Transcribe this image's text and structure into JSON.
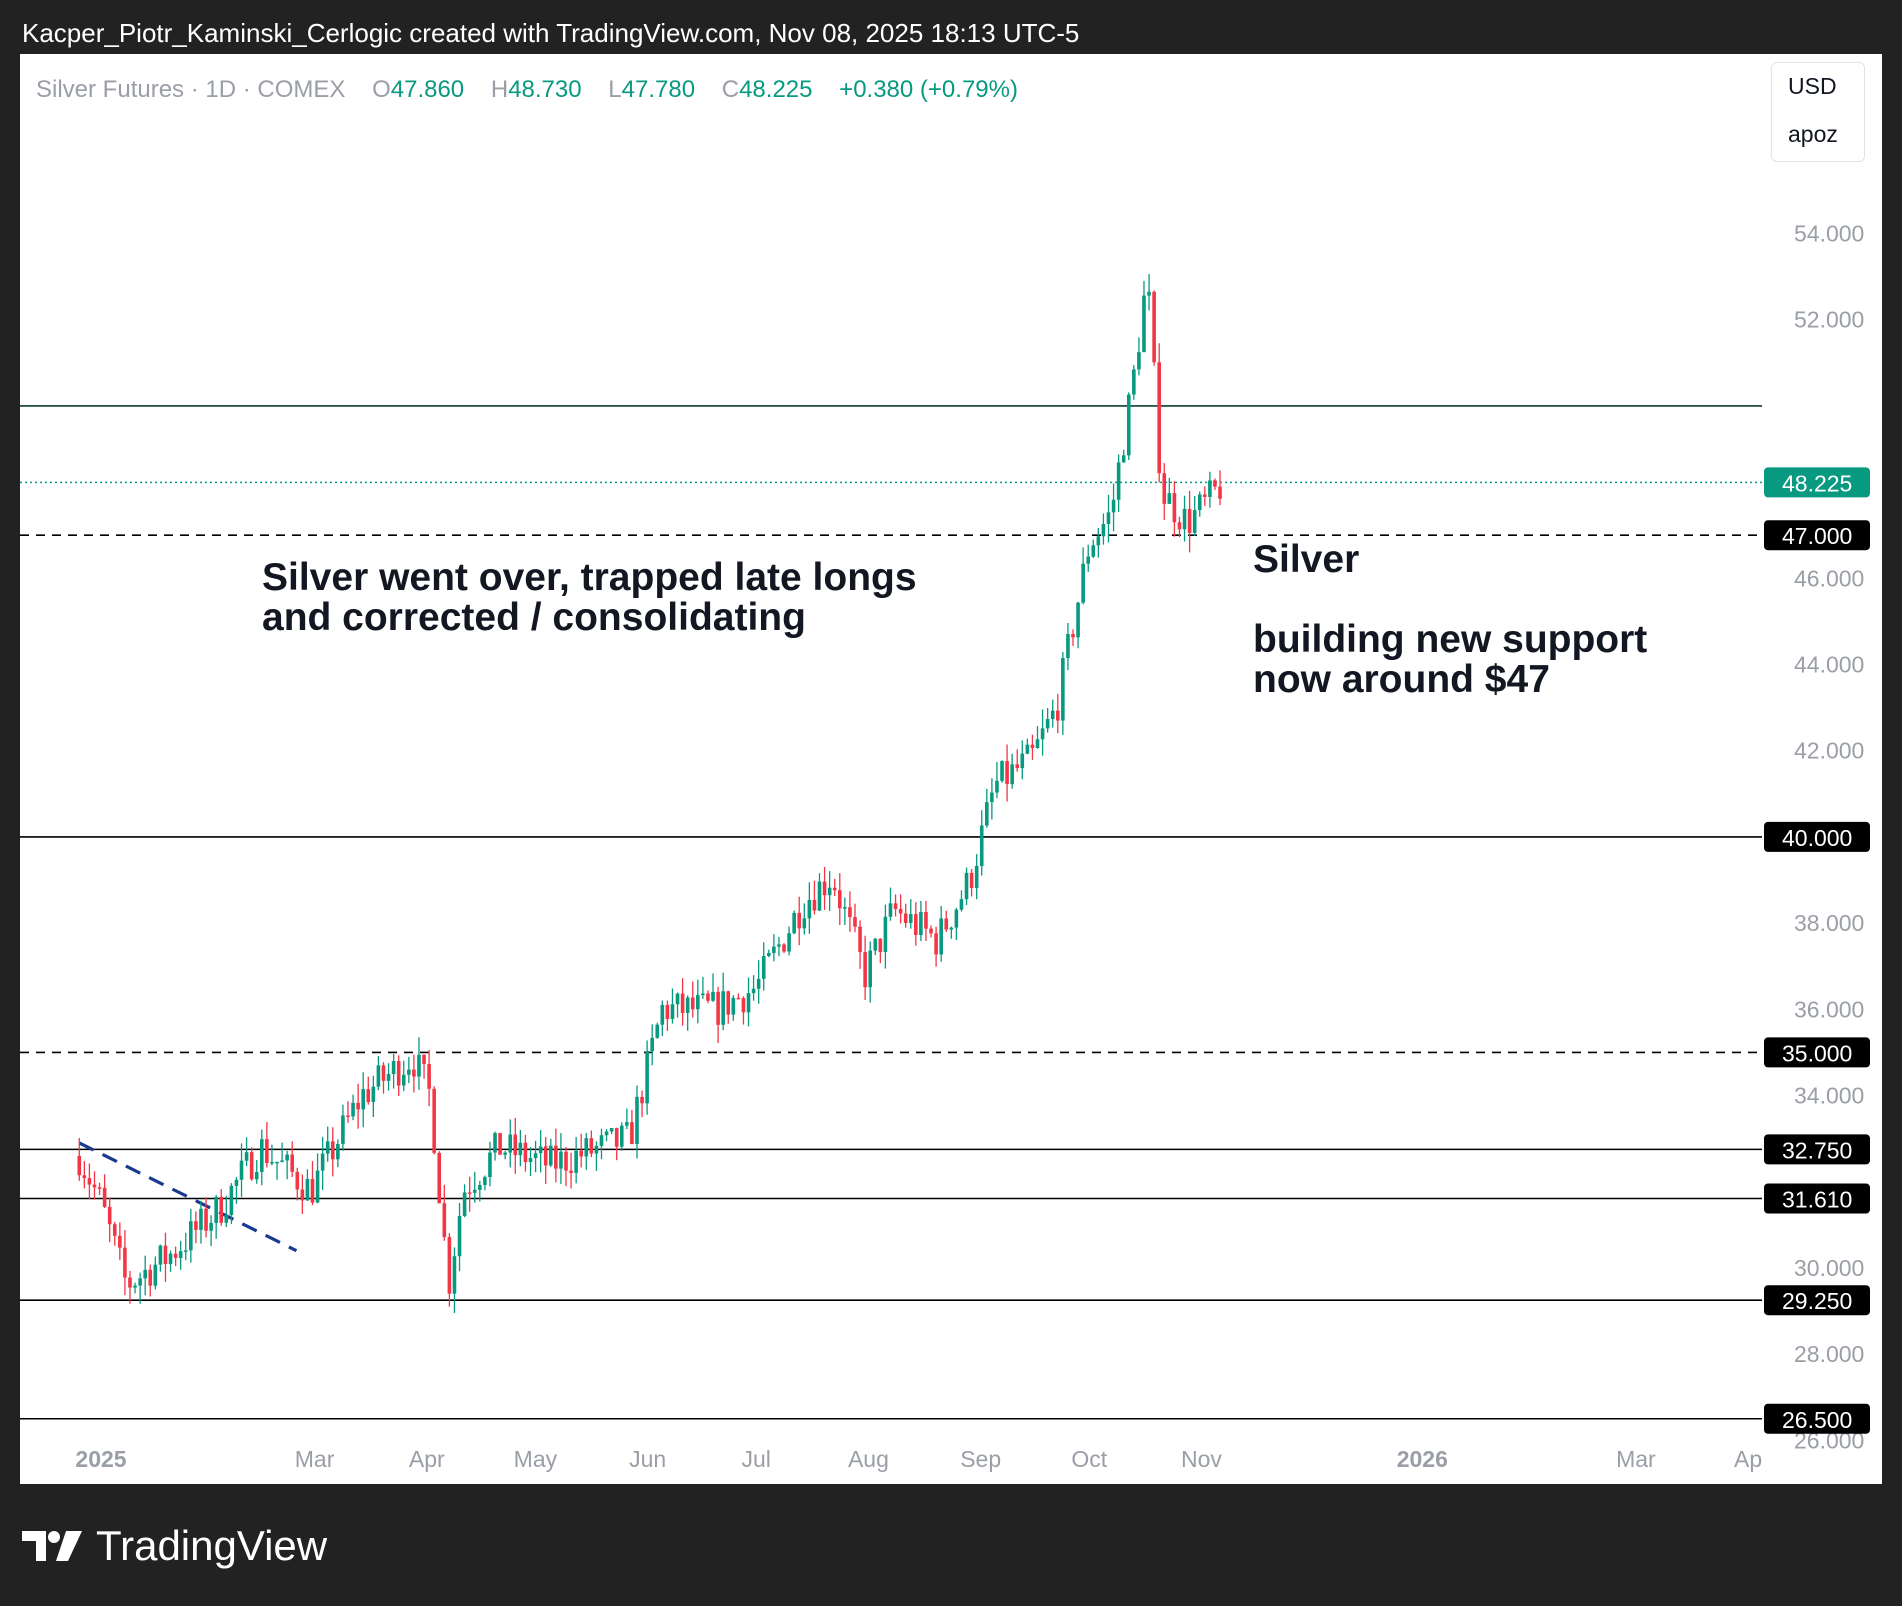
{
  "attribution": "Kacper_Piotr_Kaminski_Cerlogic created with TradingView.com, Nov 08, 2025 18:13 UTC-5",
  "legend": {
    "symbol": "Silver Futures · 1D · COMEX",
    "o_label": "O",
    "o_value": "47.860",
    "h_label": "H",
    "h_value": "48.730",
    "l_label": "L",
    "l_value": "47.780",
    "c_label": "C",
    "c_value": "48.225",
    "change": "+0.380 (+0.79%)"
  },
  "scale_menu": {
    "currency": "USD",
    "mode": "apoz"
  },
  "annotations": {
    "left_line1": "Silver went over, trapped late longs",
    "left_line2": "and corrected / consolidating",
    "right_title": "Silver",
    "right_line1": "building new support",
    "right_line2": "now around $47"
  },
  "footer": {
    "brand": "TradingView"
  },
  "colors": {
    "up": "#089981",
    "down": "#f23645",
    "trendline": "#1a3a8f",
    "upper_line": "#0b3d2e"
  },
  "chart_data": {
    "type": "candlestick",
    "title": "Silver Futures · 1D · COMEX",
    "ylim": [
      25.0,
      57.0
    ],
    "y_ticks": [
      "26.000",
      "28.000",
      "30.000",
      "34.000",
      "36.000",
      "38.000",
      "42.000",
      "44.000",
      "46.000",
      "52.000",
      "54.000"
    ],
    "x_ticks": [
      {
        "label": "2025",
        "date": "2025-01-01",
        "bold": true
      },
      {
        "label": "Mar",
        "date": "2025-03-01",
        "bold": false
      },
      {
        "label": "Apr",
        "date": "2025-04-01",
        "bold": false
      },
      {
        "label": "May",
        "date": "2025-05-01",
        "bold": false
      },
      {
        "label": "Jun",
        "date": "2025-06-01",
        "bold": false
      },
      {
        "label": "Jul",
        "date": "2025-07-01",
        "bold": false
      },
      {
        "label": "Aug",
        "date": "2025-08-01",
        "bold": false
      },
      {
        "label": "Sep",
        "date": "2025-09-01",
        "bold": false
      },
      {
        "label": "Oct",
        "date": "2025-10-01",
        "bold": false
      },
      {
        "label": "Nov",
        "date": "2025-11-01",
        "bold": false
      },
      {
        "label": "2026",
        "date": "2026-01-01",
        "bold": true
      },
      {
        "label": "Mar",
        "date": "2026-03-01",
        "bold": false
      },
      {
        "label": "Ap",
        "date": "2026-04-01",
        "bold": false
      }
    ],
    "horizontal_levels": [
      {
        "price": "50.000",
        "style": "solid",
        "badge": false
      },
      {
        "price": "48.225",
        "style": "dotted",
        "badge": true,
        "badge_color": "#089981"
      },
      {
        "price": "47.000",
        "style": "dashed",
        "badge": true,
        "badge_color": "#000000"
      },
      {
        "price": "40.000",
        "style": "solid",
        "badge": true,
        "badge_color": "#000000"
      },
      {
        "price": "35.000",
        "style": "dashed",
        "badge": true,
        "badge_color": "#000000"
      },
      {
        "price": "32.750",
        "style": "solid",
        "badge": true,
        "badge_color": "#000000"
      },
      {
        "price": "31.610",
        "style": "solid",
        "badge": true,
        "badge_color": "#000000"
      },
      {
        "price": "29.250",
        "style": "solid",
        "badge": true,
        "badge_color": "#000000"
      },
      {
        "price": "26.500",
        "style": "solid",
        "badge": true,
        "badge_color": "#000000"
      }
    ],
    "trendline": {
      "from": {
        "date": "2024-12-26",
        "price": 32.9
      },
      "to": {
        "date": "2025-02-24",
        "price": 30.4
      },
      "style": "dashed"
    },
    "path_keypoints": [
      {
        "date": "2024-12-26",
        "price": 32.6
      },
      {
        "date": "2025-01-01",
        "price": 31.5
      },
      {
        "date": "2025-01-08",
        "price": 29.6
      },
      {
        "date": "2025-01-20",
        "price": 30.3
      },
      {
        "date": "2025-02-03",
        "price": 31.4
      },
      {
        "date": "2025-02-14",
        "price": 32.8
      },
      {
        "date": "2025-02-28",
        "price": 31.8
      },
      {
        "date": "2025-03-14",
        "price": 34.0
      },
      {
        "date": "2025-03-28",
        "price": 34.9
      },
      {
        "date": "2025-04-02",
        "price": 34.0
      },
      {
        "date": "2025-04-07",
        "price": 29.6
      },
      {
        "date": "2025-04-11",
        "price": 31.8
      },
      {
        "date": "2025-04-21",
        "price": 32.8
      },
      {
        "date": "2025-05-05",
        "price": 32.4
      },
      {
        "date": "2025-05-27",
        "price": 33.0
      },
      {
        "date": "2025-06-05",
        "price": 36.0
      },
      {
        "date": "2025-06-20",
        "price": 36.0
      },
      {
        "date": "2025-07-01",
        "price": 36.5
      },
      {
        "date": "2025-07-14",
        "price": 38.5
      },
      {
        "date": "2025-07-22",
        "price": 39.1
      },
      {
        "date": "2025-07-31",
        "price": 36.8
      },
      {
        "date": "2025-08-08",
        "price": 38.3
      },
      {
        "date": "2025-08-20",
        "price": 37.6
      },
      {
        "date": "2025-08-29",
        "price": 39.0
      },
      {
        "date": "2025-09-05",
        "price": 41.2
      },
      {
        "date": "2025-09-15",
        "price": 41.8
      },
      {
        "date": "2025-09-22",
        "price": 43.0
      },
      {
        "date": "2025-10-01",
        "price": 46.8
      },
      {
        "date": "2025-10-07",
        "price": 47.5
      },
      {
        "date": "2025-10-13",
        "price": 50.5
      },
      {
        "date": "2025-10-17",
        "price": 53.0
      },
      {
        "date": "2025-10-21",
        "price": 48.0
      },
      {
        "date": "2025-10-28",
        "price": 47.3
      },
      {
        "date": "2025-11-03",
        "price": 47.8
      },
      {
        "date": "2025-11-07",
        "price": 48.225
      }
    ]
  }
}
